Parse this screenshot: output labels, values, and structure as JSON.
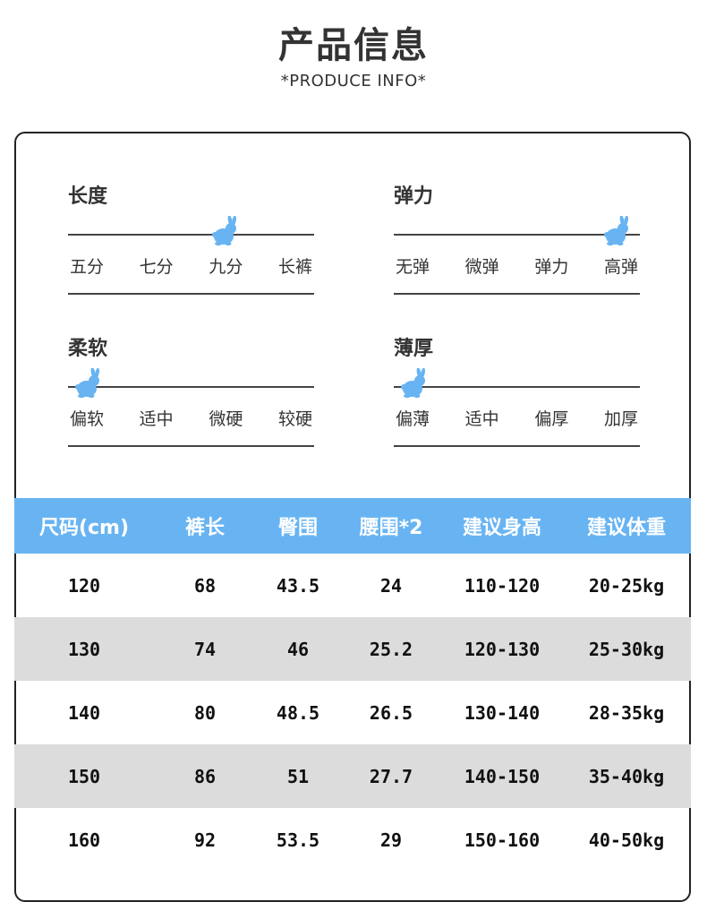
{
  "header": {
    "title": "产品信息",
    "subtitle": "*PRODUCE INFO*"
  },
  "attributes": [
    {
      "title": "长度",
      "options": [
        "五分",
        "七分",
        "九分",
        "长裤"
      ],
      "selected_index": 2
    },
    {
      "title": "弹力",
      "options": [
        "无弹",
        "微弹",
        "弹力",
        "高弹"
      ],
      "selected_index": 3
    },
    {
      "title": "柔软",
      "options": [
        "偏软",
        "适中",
        "微硬",
        "较硬"
      ],
      "selected_index": 0
    },
    {
      "title": "薄厚",
      "options": [
        "偏薄",
        "适中",
        "偏厚",
        "加厚"
      ],
      "selected_index": 0
    }
  ],
  "indicator_icon": "rabbit-icon",
  "colors": {
    "accent": "#68b4f2",
    "row_alt": "#dcdcdc"
  },
  "size_table": {
    "headers": [
      "尺码(cm)",
      "裤长",
      "臀围",
      "腰围*2",
      "建议身高",
      "建议体重"
    ],
    "rows": [
      [
        "120",
        "68",
        "43.5",
        "24",
        "110-120",
        "20-25kg"
      ],
      [
        "130",
        "74",
        "46",
        "25.2",
        "120-130",
        "25-30kg"
      ],
      [
        "140",
        "80",
        "48.5",
        "26.5",
        "130-140",
        "28-35kg"
      ],
      [
        "150",
        "86",
        "51",
        "27.7",
        "140-150",
        "35-40kg"
      ],
      [
        "160",
        "92",
        "53.5",
        "29",
        "150-160",
        "40-50kg"
      ]
    ]
  }
}
